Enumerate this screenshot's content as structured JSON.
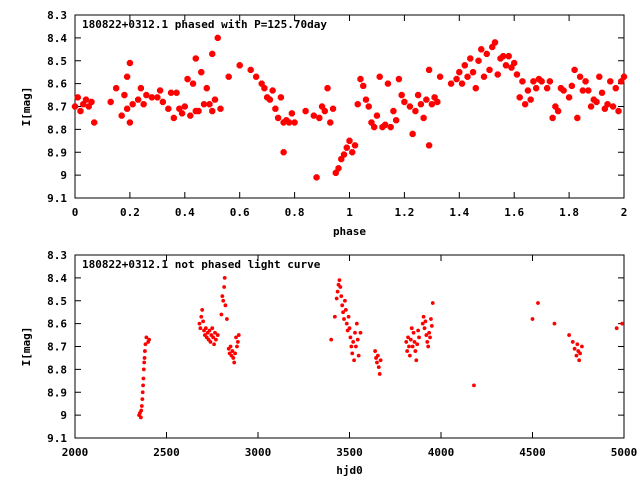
{
  "chart_data": [
    {
      "type": "scatter",
      "title": "180822+0312.1 phased with P=125.70day",
      "xlabel": "phase",
      "ylabel": "I[mag]",
      "xlim": [
        0,
        2
      ],
      "ylim": [
        8.3,
        9.1
      ],
      "y_inverted": true,
      "grid": false,
      "marker": "filled-octagon",
      "color": "#ff0000",
      "x_ticks": [
        0,
        0.2,
        0.4,
        0.6,
        0.8,
        1,
        1.2,
        1.4,
        1.6,
        1.8,
        2
      ],
      "x_tick_labels": [
        "0",
        "0.2",
        "0.4",
        "0.6",
        "0.8",
        "1",
        "1.2",
        "1.4",
        "1.6",
        "1.8",
        "2"
      ],
      "y_ticks": [
        8.3,
        8.4,
        8.5,
        8.6,
        8.7,
        8.8,
        8.9,
        9,
        9.1
      ],
      "y_tick_labels": [
        "8.3",
        "8.4",
        "8.5",
        "8.6",
        "8.7",
        "8.8",
        "8.9",
        "9",
        "9.1"
      ],
      "points": [
        [
          0.0,
          8.7
        ],
        [
          0.01,
          8.66
        ],
        [
          0.02,
          8.72
        ],
        [
          0.03,
          8.69
        ],
        [
          0.04,
          8.67
        ],
        [
          0.05,
          8.7
        ],
        [
          0.06,
          8.68
        ],
        [
          0.07,
          8.77
        ],
        [
          0.13,
          8.68
        ],
        [
          0.15,
          8.62
        ],
        [
          0.17,
          8.74
        ],
        [
          0.18,
          8.65
        ],
        [
          0.19,
          8.71
        ],
        [
          0.19,
          8.57
        ],
        [
          0.2,
          8.51
        ],
        [
          0.2,
          8.77
        ],
        [
          0.21,
          8.69
        ],
        [
          0.23,
          8.67
        ],
        [
          0.24,
          8.62
        ],
        [
          0.25,
          8.69
        ],
        [
          0.26,
          8.65
        ],
        [
          0.28,
          8.66
        ],
        [
          0.3,
          8.66
        ],
        [
          0.31,
          8.63
        ],
        [
          0.32,
          8.68
        ],
        [
          0.34,
          8.71
        ],
        [
          0.35,
          8.64
        ],
        [
          0.36,
          8.75
        ],
        [
          0.37,
          8.64
        ],
        [
          0.38,
          8.71
        ],
        [
          0.39,
          8.73
        ],
        [
          0.4,
          8.7
        ],
        [
          0.41,
          8.58
        ],
        [
          0.42,
          8.74
        ],
        [
          0.43,
          8.6
        ],
        [
          0.44,
          8.72
        ],
        [
          0.44,
          8.49
        ],
        [
          0.45,
          8.72
        ],
        [
          0.46,
          8.55
        ],
        [
          0.47,
          8.69
        ],
        [
          0.48,
          8.62
        ],
        [
          0.49,
          8.69
        ],
        [
          0.5,
          8.72
        ],
        [
          0.5,
          8.47
        ],
        [
          0.51,
          8.67
        ],
        [
          0.52,
          8.4
        ],
        [
          0.53,
          8.71
        ],
        [
          0.56,
          8.57
        ],
        [
          0.6,
          8.52
        ],
        [
          0.64,
          8.54
        ],
        [
          0.66,
          8.57
        ],
        [
          0.68,
          8.6
        ],
        [
          0.69,
          8.62
        ],
        [
          0.7,
          8.66
        ],
        [
          0.71,
          8.67
        ],
        [
          0.72,
          8.63
        ],
        [
          0.73,
          8.71
        ],
        [
          0.74,
          8.75
        ],
        [
          0.75,
          8.66
        ],
        [
          0.76,
          8.77
        ],
        [
          0.76,
          8.9
        ],
        [
          0.77,
          8.76
        ],
        [
          0.78,
          8.77
        ],
        [
          0.79,
          8.73
        ],
        [
          0.8,
          8.77
        ],
        [
          0.84,
          8.72
        ],
        [
          0.87,
          8.74
        ],
        [
          0.88,
          9.01
        ],
        [
          0.89,
          8.75
        ],
        [
          0.9,
          8.7
        ],
        [
          0.91,
          8.72
        ],
        [
          0.92,
          8.62
        ],
        [
          0.93,
          8.77
        ],
        [
          0.94,
          8.71
        ],
        [
          0.95,
          8.99
        ],
        [
          0.96,
          8.97
        ],
        [
          0.97,
          8.93
        ],
        [
          0.98,
          8.91
        ],
        [
          0.99,
          8.88
        ],
        [
          1.0,
          8.85
        ],
        [
          1.01,
          8.9
        ],
        [
          1.02,
          8.87
        ],
        [
          1.03,
          8.69
        ],
        [
          1.04,
          8.58
        ],
        [
          1.05,
          8.61
        ],
        [
          1.06,
          8.67
        ],
        [
          1.07,
          8.7
        ],
        [
          1.08,
          8.77
        ],
        [
          1.09,
          8.79
        ],
        [
          1.1,
          8.74
        ],
        [
          1.11,
          8.57
        ],
        [
          1.12,
          8.79
        ],
        [
          1.13,
          8.78
        ],
        [
          1.14,
          8.6
        ],
        [
          1.15,
          8.79
        ],
        [
          1.16,
          8.72
        ],
        [
          1.17,
          8.76
        ],
        [
          1.18,
          8.58
        ],
        [
          1.19,
          8.65
        ],
        [
          1.2,
          8.68
        ],
        [
          1.22,
          8.7
        ],
        [
          1.23,
          8.82
        ],
        [
          1.24,
          8.72
        ],
        [
          1.25,
          8.65
        ],
        [
          1.26,
          8.69
        ],
        [
          1.27,
          8.75
        ],
        [
          1.28,
          8.67
        ],
        [
          1.29,
          8.54
        ],
        [
          1.29,
          8.87
        ],
        [
          1.3,
          8.69
        ],
        [
          1.31,
          8.66
        ],
        [
          1.32,
          8.68
        ],
        [
          1.33,
          8.57
        ],
        [
          1.37,
          8.6
        ],
        [
          1.39,
          8.58
        ],
        [
          1.4,
          8.55
        ],
        [
          1.41,
          8.6
        ],
        [
          1.42,
          8.52
        ],
        [
          1.43,
          8.57
        ],
        [
          1.44,
          8.49
        ],
        [
          1.45,
          8.55
        ],
        [
          1.46,
          8.62
        ],
        [
          1.47,
          8.5
        ],
        [
          1.48,
          8.45
        ],
        [
          1.49,
          8.57
        ],
        [
          1.5,
          8.47
        ],
        [
          1.51,
          8.54
        ],
        [
          1.52,
          8.44
        ],
        [
          1.53,
          8.42
        ],
        [
          1.54,
          8.56
        ],
        [
          1.55,
          8.49
        ],
        [
          1.56,
          8.48
        ],
        [
          1.57,
          8.52
        ],
        [
          1.58,
          8.48
        ],
        [
          1.59,
          8.53
        ],
        [
          1.6,
          8.51
        ],
        [
          1.61,
          8.56
        ],
        [
          1.62,
          8.66
        ],
        [
          1.63,
          8.59
        ],
        [
          1.64,
          8.69
        ],
        [
          1.65,
          8.63
        ],
        [
          1.66,
          8.67
        ],
        [
          1.67,
          8.59
        ],
        [
          1.68,
          8.62
        ],
        [
          1.69,
          8.58
        ],
        [
          1.7,
          8.59
        ],
        [
          1.72,
          8.62
        ],
        [
          1.73,
          8.59
        ],
        [
          1.74,
          8.75
        ],
        [
          1.75,
          8.7
        ],
        [
          1.76,
          8.72
        ],
        [
          1.77,
          8.62
        ],
        [
          1.78,
          8.63
        ],
        [
          1.8,
          8.66
        ],
        [
          1.81,
          8.61
        ],
        [
          1.82,
          8.54
        ],
        [
          1.83,
          8.75
        ],
        [
          1.84,
          8.57
        ],
        [
          1.85,
          8.63
        ],
        [
          1.86,
          8.59
        ],
        [
          1.87,
          8.63
        ],
        [
          1.88,
          8.7
        ],
        [
          1.89,
          8.67
        ],
        [
          1.9,
          8.68
        ],
        [
          1.91,
          8.57
        ],
        [
          1.92,
          8.64
        ],
        [
          1.93,
          8.71
        ],
        [
          1.94,
          8.69
        ],
        [
          1.95,
          8.59
        ],
        [
          1.96,
          8.7
        ],
        [
          1.97,
          8.62
        ],
        [
          1.98,
          8.72
        ],
        [
          1.99,
          8.59
        ],
        [
          2.0,
          8.57
        ]
      ]
    },
    {
      "type": "scatter",
      "title": "180822+0312.1 not phased light curve",
      "xlabel": "hjd0",
      "ylabel": "I[mag]",
      "xlim": [
        2000,
        5000
      ],
      "ylim": [
        8.3,
        9.1
      ],
      "y_inverted": true,
      "grid": false,
      "marker": "small-dot",
      "color": "#ff0000",
      "x_ticks": [
        2000,
        2500,
        3000,
        3500,
        4000,
        4500,
        5000
      ],
      "x_tick_labels": [
        "2000",
        "2500",
        "3000",
        "3500",
        "4000",
        "4500",
        "5000"
      ],
      "y_ticks": [
        8.3,
        8.4,
        8.5,
        8.6,
        8.7,
        8.8,
        8.9,
        9,
        9.1
      ],
      "y_tick_labels": [
        "8.3",
        "8.4",
        "8.5",
        "8.6",
        "8.7",
        "8.8",
        "8.9",
        "9",
        "9.1"
      ],
      "points": [
        [
          2350,
          9.0
        ],
        [
          2355,
          8.99
        ],
        [
          2360,
          9.01
        ],
        [
          2362,
          8.98
        ],
        [
          2365,
          8.96
        ],
        [
          2368,
          8.93
        ],
        [
          2370,
          8.9
        ],
        [
          2372,
          8.87
        ],
        [
          2374,
          8.84
        ],
        [
          2376,
          8.8
        ],
        [
          2378,
          8.77
        ],
        [
          2380,
          8.75
        ],
        [
          2382,
          8.72
        ],
        [
          2385,
          8.69
        ],
        [
          2390,
          8.66
        ],
        [
          2400,
          8.68
        ],
        [
          2405,
          8.67
        ],
        [
          2680,
          8.6
        ],
        [
          2685,
          8.62
        ],
        [
          2690,
          8.57
        ],
        [
          2695,
          8.54
        ],
        [
          2700,
          8.59
        ],
        [
          2705,
          8.63
        ],
        [
          2710,
          8.65
        ],
        [
          2715,
          8.62
        ],
        [
          2720,
          8.66
        ],
        [
          2725,
          8.64
        ],
        [
          2730,
          8.67
        ],
        [
          2735,
          8.63
        ],
        [
          2740,
          8.68
        ],
        [
          2745,
          8.65
        ],
        [
          2750,
          8.62
        ],
        [
          2755,
          8.66
        ],
        [
          2760,
          8.69
        ],
        [
          2765,
          8.64
        ],
        [
          2770,
          8.67
        ],
        [
          2780,
          8.65
        ],
        [
          2800,
          8.56
        ],
        [
          2805,
          8.48
        ],
        [
          2810,
          8.5
        ],
        [
          2815,
          8.44
        ],
        [
          2818,
          8.4
        ],
        [
          2822,
          8.52
        ],
        [
          2830,
          8.58
        ],
        [
          2840,
          8.71
        ],
        [
          2845,
          8.73
        ],
        [
          2850,
          8.7
        ],
        [
          2855,
          8.74
        ],
        [
          2860,
          8.72
        ],
        [
          2865,
          8.75
        ],
        [
          2870,
          8.77
        ],
        [
          2875,
          8.73
        ],
        [
          2880,
          8.66
        ],
        [
          2885,
          8.7
        ],
        [
          2890,
          8.68
        ],
        [
          2895,
          8.65
        ],
        [
          3400,
          8.67
        ],
        [
          3420,
          8.57
        ],
        [
          3430,
          8.49
        ],
        [
          3435,
          8.46
        ],
        [
          3440,
          8.43
        ],
        [
          3445,
          8.41
        ],
        [
          3450,
          8.44
        ],
        [
          3455,
          8.48
        ],
        [
          3460,
          8.52
        ],
        [
          3465,
          8.55
        ],
        [
          3470,
          8.58
        ],
        [
          3475,
          8.5
        ],
        [
          3480,
          8.54
        ],
        [
          3485,
          8.6
        ],
        [
          3490,
          8.63
        ],
        [
          3495,
          8.57
        ],
        [
          3500,
          8.62
        ],
        [
          3505,
          8.66
        ],
        [
          3510,
          8.7
        ],
        [
          3515,
          8.73
        ],
        [
          3520,
          8.68
        ],
        [
          3525,
          8.76
        ],
        [
          3530,
          8.64
        ],
        [
          3535,
          8.7
        ],
        [
          3540,
          8.6
        ],
        [
          3545,
          8.67
        ],
        [
          3550,
          8.74
        ],
        [
          3560,
          8.64
        ],
        [
          3640,
          8.72
        ],
        [
          3645,
          8.75
        ],
        [
          3650,
          8.77
        ],
        [
          3655,
          8.74
        ],
        [
          3660,
          8.79
        ],
        [
          3665,
          8.82
        ],
        [
          3670,
          8.76
        ],
        [
          3810,
          8.68
        ],
        [
          3815,
          8.72
        ],
        [
          3820,
          8.66
        ],
        [
          3825,
          8.7
        ],
        [
          3830,
          8.74
        ],
        [
          3835,
          8.67
        ],
        [
          3840,
          8.62
        ],
        [
          3845,
          8.7
        ],
        [
          3850,
          8.64
        ],
        [
          3855,
          8.68
        ],
        [
          3860,
          8.72
        ],
        [
          3865,
          8.76
        ],
        [
          3870,
          8.69
        ],
        [
          3875,
          8.63
        ],
        [
          3880,
          8.66
        ],
        [
          3900,
          8.6
        ],
        [
          3905,
          8.57
        ],
        [
          3910,
          8.62
        ],
        [
          3915,
          8.59
        ],
        [
          3920,
          8.65
        ],
        [
          3925,
          8.68
        ],
        [
          3930,
          8.7
        ],
        [
          3935,
          8.64
        ],
        [
          3940,
          8.66
        ],
        [
          3945,
          8.58
        ],
        [
          3950,
          8.61
        ],
        [
          3955,
          8.51
        ],
        [
          4180,
          8.87
        ],
        [
          4500,
          8.58
        ],
        [
          4530,
          8.51
        ],
        [
          4620,
          8.6
        ],
        [
          4700,
          8.65
        ],
        [
          4720,
          8.68
        ],
        [
          4730,
          8.71
        ],
        [
          4740,
          8.74
        ],
        [
          4745,
          8.69
        ],
        [
          4750,
          8.72
        ],
        [
          4755,
          8.76
        ],
        [
          4760,
          8.73
        ],
        [
          4770,
          8.7
        ],
        [
          4960,
          8.62
        ],
        [
          4990,
          8.6
        ]
      ]
    }
  ]
}
